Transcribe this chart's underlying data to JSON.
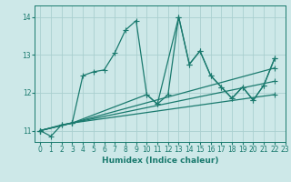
{
  "xlabel": "Humidex (Indice chaleur)",
  "bg_color": "#cde8e8",
  "line_color": "#1a7a6e",
  "grid_color": "#aacfcf",
  "xlim": [
    -0.5,
    23
  ],
  "ylim": [
    10.7,
    14.3
  ],
  "yticks": [
    11,
    12,
    13,
    14
  ],
  "xticks": [
    0,
    1,
    2,
    3,
    4,
    5,
    6,
    7,
    8,
    9,
    10,
    11,
    12,
    13,
    14,
    15,
    16,
    17,
    18,
    19,
    20,
    21,
    22,
    23
  ],
  "lines": [
    {
      "x": [
        0,
        1,
        2,
        3,
        4,
        5,
        6,
        7,
        8,
        9,
        10,
        11,
        12,
        13,
        14,
        15,
        16,
        17,
        18,
        19,
        20,
        21,
        22
      ],
      "y": [
        11.0,
        10.85,
        11.15,
        11.2,
        12.45,
        12.55,
        12.6,
        13.05,
        13.65,
        13.9,
        11.95,
        11.7,
        11.95,
        14.0,
        12.75,
        13.1,
        12.45,
        12.15,
        11.85,
        12.15,
        11.8,
        12.2,
        12.9
      ]
    },
    {
      "x": [
        0,
        2,
        3,
        10,
        11,
        13,
        14,
        15,
        16,
        17,
        18,
        19,
        20,
        21,
        22
      ],
      "y": [
        11.0,
        11.15,
        11.2,
        11.95,
        11.7,
        14.0,
        12.75,
        13.1,
        12.45,
        12.15,
        11.85,
        12.15,
        11.8,
        12.2,
        12.9
      ]
    },
    {
      "x": [
        0,
        3,
        22
      ],
      "y": [
        11.0,
        11.2,
        12.65
      ]
    },
    {
      "x": [
        0,
        3,
        22
      ],
      "y": [
        11.0,
        11.2,
        12.3
      ]
    },
    {
      "x": [
        0,
        3,
        22
      ],
      "y": [
        11.0,
        11.2,
        11.95
      ]
    }
  ],
  "marker": "+",
  "markersize": 4,
  "linewidth": 0.9,
  "label_fontsize": 6.5,
  "tick_fontsize": 5.5
}
